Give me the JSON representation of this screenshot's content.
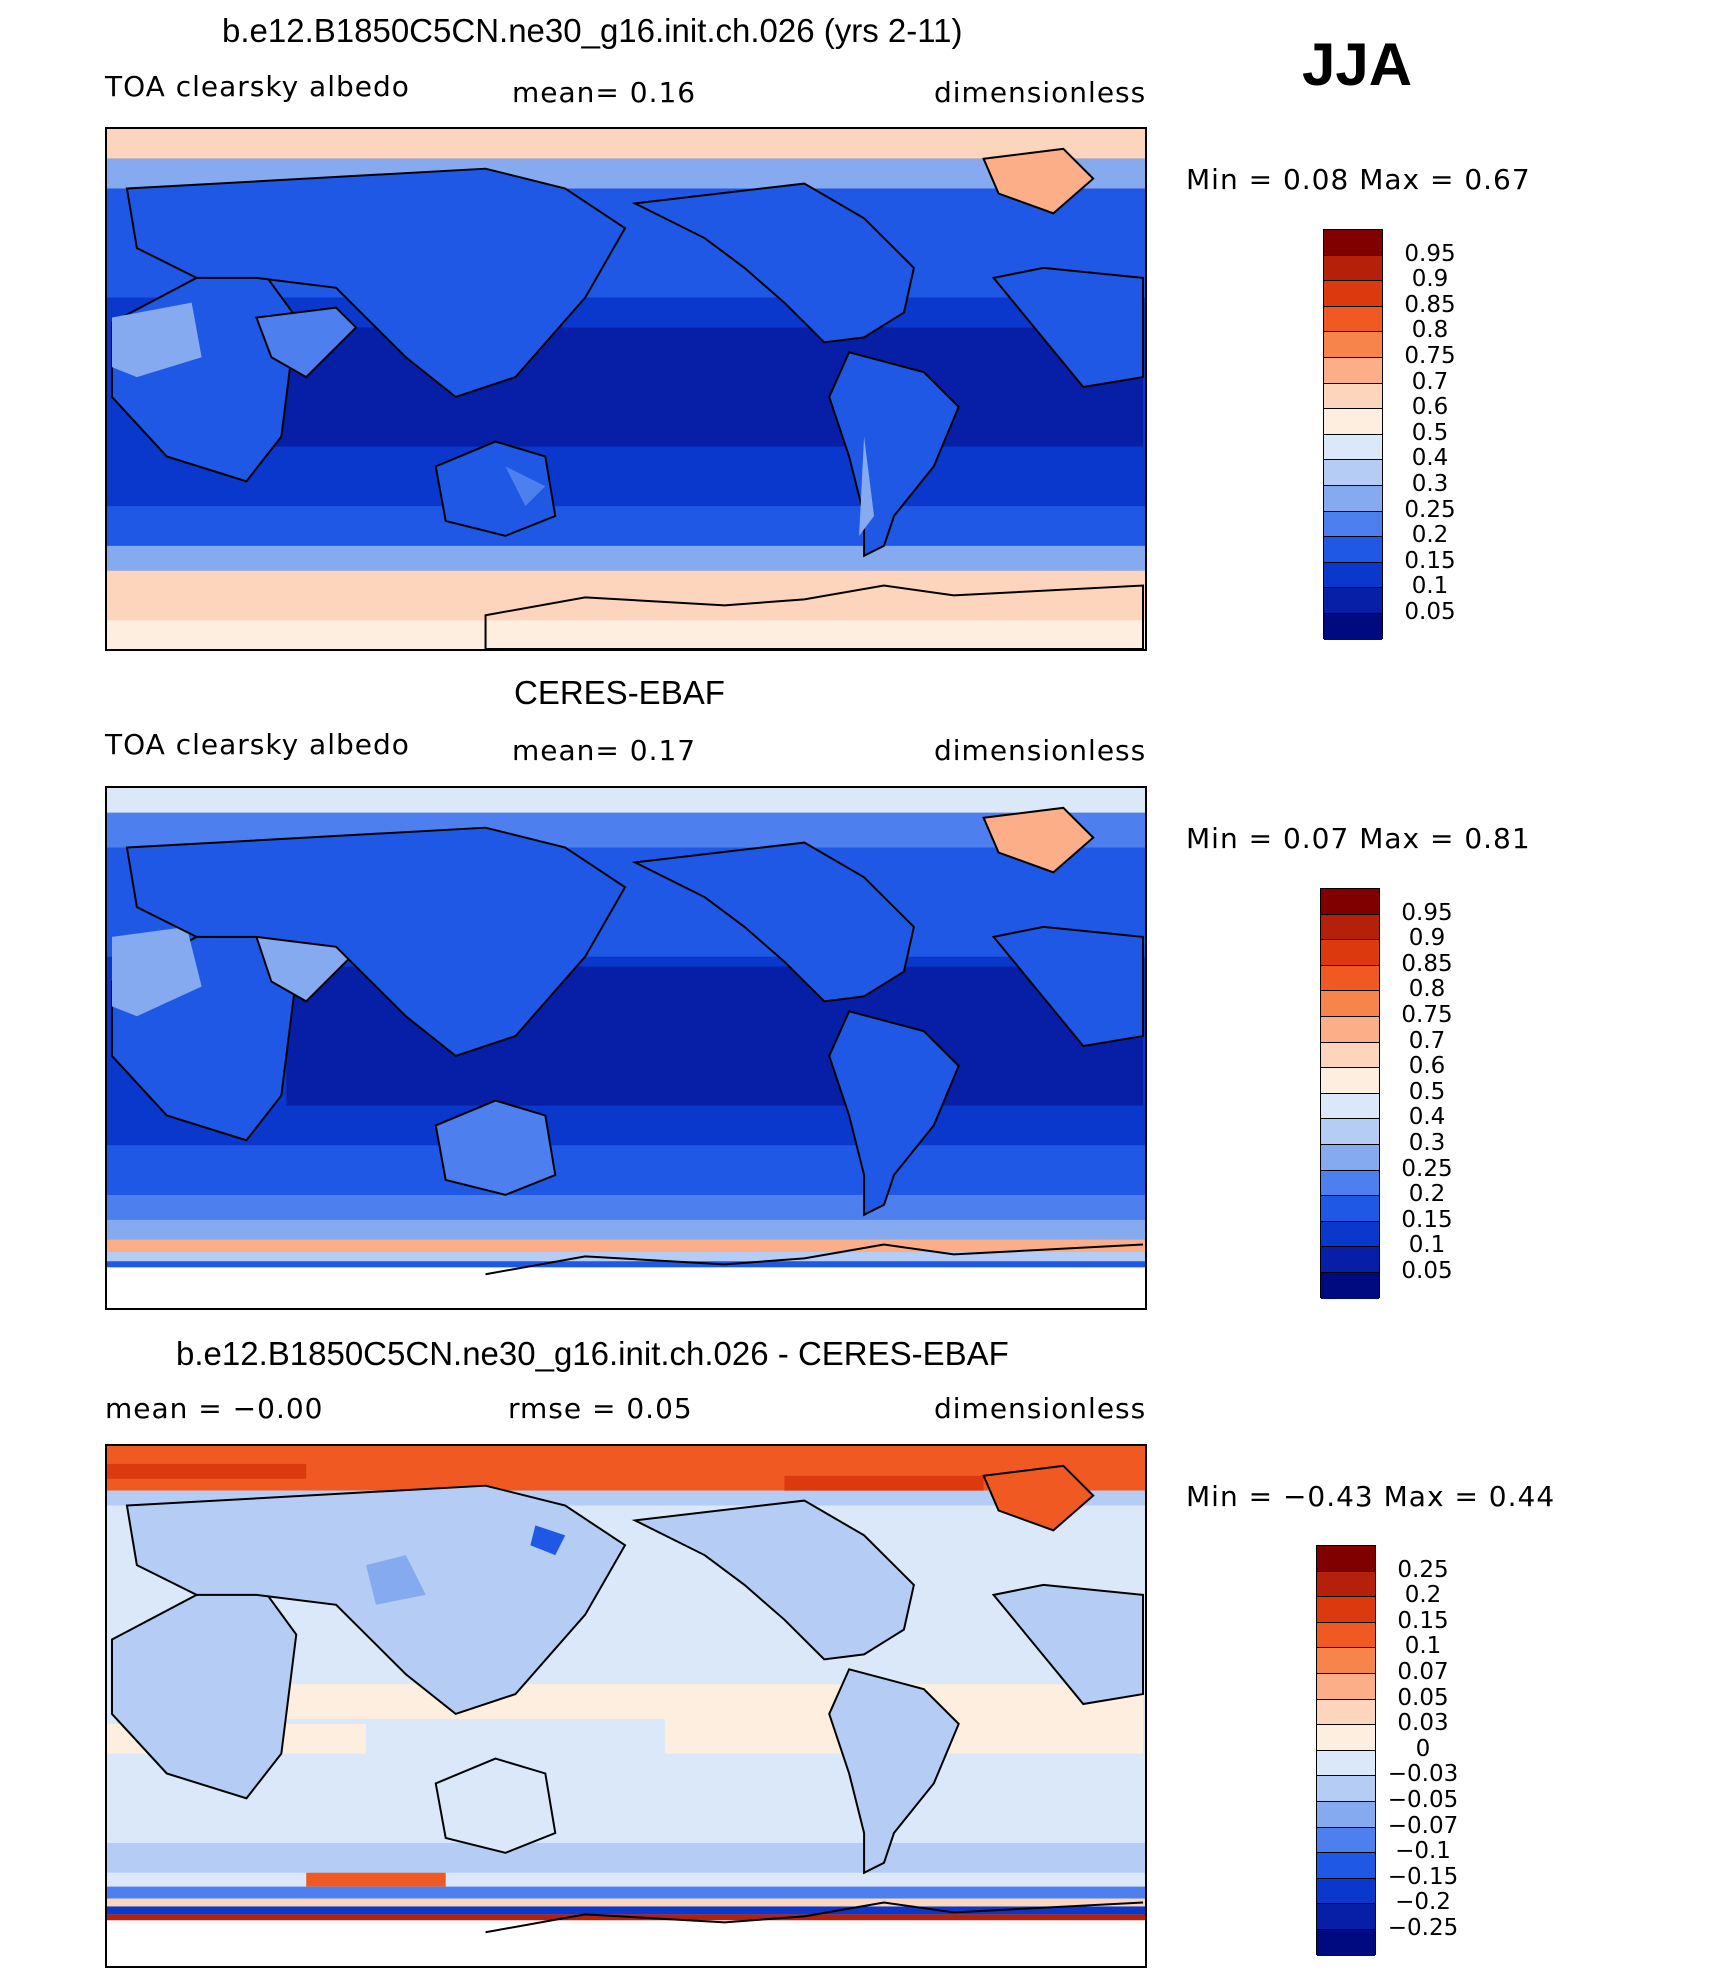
{
  "season": "JJA",
  "panels": [
    {
      "title": "b.e12.B1850C5CN.ne30_g16.init.ch.026 (yrs 2-11)",
      "left_label": "TOA clearsky albedo",
      "mid_label": "mean=    0.16",
      "right_label": "dimensionless",
      "minmax": "Min =     0.08  Max =     0.67",
      "colorbar": {
        "labels": [
          "0.95",
          "0.9",
          "0.85",
          "0.8",
          "0.75",
          "0.7",
          "0.6",
          "0.5",
          "0.4",
          "0.3",
          "0.25",
          "0.2",
          "0.15",
          "0.1",
          "0.05"
        ],
        "colors": [
          "#800000",
          "#b5200a",
          "#dc3a0e",
          "#f05a22",
          "#f7854b",
          "#fbae87",
          "#fdd5bd",
          "#fdeedf",
          "#dbe8fa",
          "#b5cdf5",
          "#86aaf0",
          "#4d80ee",
          "#2058e6",
          "#0a37cc",
          "#061fa6",
          "#000a80"
        ]
      }
    },
    {
      "title": "CERES-EBAF",
      "left_label": "TOA clearsky albedo",
      "mid_label": "mean=    0.17",
      "right_label": "dimensionless",
      "minmax": "Min =     0.07  Max =     0.81",
      "colorbar": {
        "labels": [
          "0.95",
          "0.9",
          "0.85",
          "0.8",
          "0.75",
          "0.7",
          "0.6",
          "0.5",
          "0.4",
          "0.3",
          "0.25",
          "0.2",
          "0.15",
          "0.1",
          "0.05"
        ],
        "colors": [
          "#800000",
          "#b5200a",
          "#dc3a0e",
          "#f05a22",
          "#f7854b",
          "#fbae87",
          "#fdd5bd",
          "#fdeedf",
          "#dbe8fa",
          "#b5cdf5",
          "#86aaf0",
          "#4d80ee",
          "#2058e6",
          "#0a37cc",
          "#061fa6",
          "#000a80"
        ]
      }
    },
    {
      "title": "b.e12.B1850C5CN.ne30_g16.init.ch.026 - CERES-EBAF",
      "left_label": "mean =   −0.00",
      "mid_label": "rmse =     0.05",
      "right_label": "dimensionless",
      "minmax": "Min =   −0.43  Max =     0.44",
      "colorbar": {
        "labels": [
          "0.25",
          "0.2",
          "0.15",
          "0.1",
          "0.07",
          "0.05",
          "0.03",
          "0",
          "−0.03",
          "−0.05",
          "−0.07",
          "−0.1",
          "−0.15",
          "−0.2",
          "−0.25"
        ],
        "colors": [
          "#800000",
          "#b5200a",
          "#dc3a0e",
          "#f05a22",
          "#f7854b",
          "#fbae87",
          "#fdd5bd",
          "#fdeedf",
          "#dbe8fa",
          "#b5cdf5",
          "#86aaf0",
          "#4d80ee",
          "#2058e6",
          "#0a37cc",
          "#061fa6",
          "#000a80"
        ]
      }
    }
  ]
}
